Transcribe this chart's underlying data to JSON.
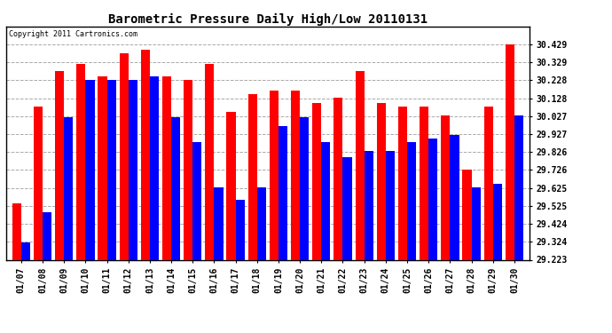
{
  "title": "Barometric Pressure Daily High/Low 20110131",
  "copyright": "Copyright 2011 Cartronics.com",
  "dates": [
    "01/07",
    "01/08",
    "01/09",
    "01/10",
    "01/11",
    "01/12",
    "01/13",
    "01/14",
    "01/15",
    "01/16",
    "01/17",
    "01/18",
    "01/19",
    "01/20",
    "01/21",
    "01/22",
    "01/23",
    "01/24",
    "01/25",
    "01/26",
    "01/27",
    "01/28",
    "01/29",
    "01/30"
  ],
  "highs": [
    29.54,
    30.08,
    30.28,
    30.32,
    30.25,
    30.38,
    30.4,
    30.25,
    30.23,
    30.32,
    30.05,
    30.15,
    30.17,
    30.17,
    30.1,
    30.13,
    30.28,
    30.1,
    30.08,
    30.08,
    30.03,
    29.73,
    30.08,
    30.43
  ],
  "lows": [
    29.32,
    29.49,
    30.02,
    30.23,
    30.23,
    30.23,
    30.25,
    30.02,
    29.88,
    29.63,
    29.56,
    29.63,
    29.97,
    30.02,
    29.88,
    29.8,
    29.83,
    29.83,
    29.88,
    29.9,
    29.92,
    29.63,
    29.65,
    30.03
  ],
  "high_color": "#ff0000",
  "low_color": "#0000ff",
  "bg_color": "#ffffff",
  "grid_color": "#aaaaaa",
  "ylim_min": 29.223,
  "ylim_max": 30.529,
  "yticks": [
    29.223,
    29.324,
    29.424,
    29.525,
    29.625,
    29.726,
    29.826,
    29.927,
    30.027,
    30.128,
    30.228,
    30.329,
    30.429
  ],
  "ytick_labels": [
    "29.223",
    "29.324",
    "29.424",
    "29.525",
    "29.625",
    "29.726",
    "29.826",
    "29.927",
    "30.027",
    "30.128",
    "30.228",
    "30.329",
    "30.429"
  ],
  "bar_width": 0.42,
  "title_fontsize": 10,
  "tick_fontsize": 7,
  "copyright_fontsize": 6
}
